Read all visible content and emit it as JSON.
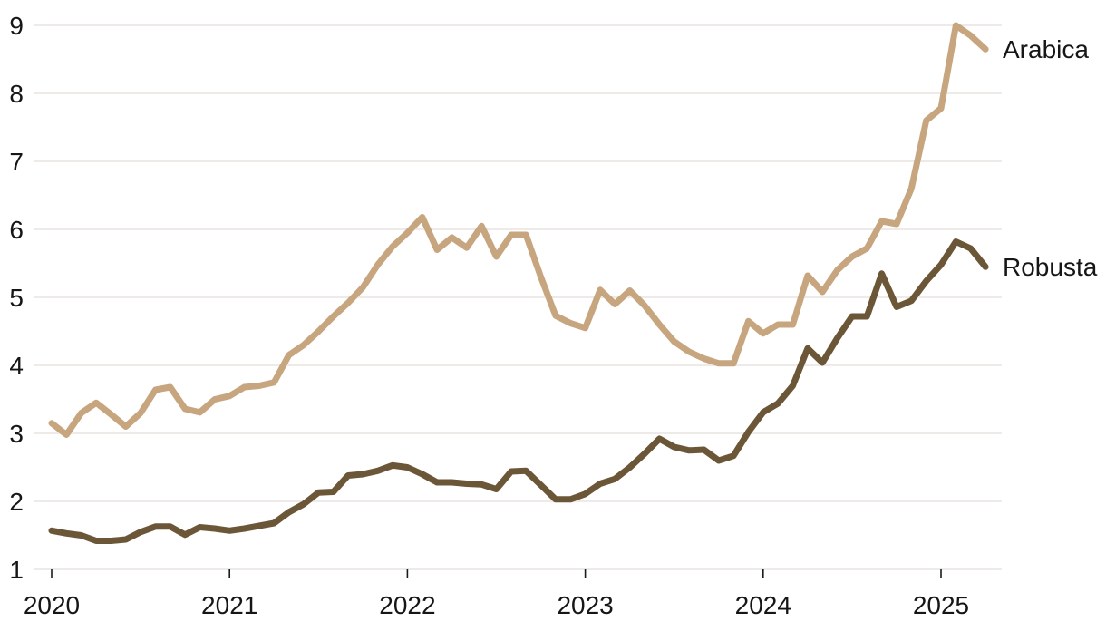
{
  "chart_data": {
    "type": "line",
    "title": "",
    "xlabel": "",
    "ylabel": "",
    "x_unit": "month",
    "x_start_label": "2020-01",
    "x_end_label": "2025-04",
    "x_tick_labels": [
      "2020",
      "2021",
      "2022",
      "2023",
      "2024",
      "2025"
    ],
    "x_tick_month_index": [
      0,
      12,
      24,
      36,
      48,
      60
    ],
    "y_ticks": [
      1,
      2,
      3,
      4,
      5,
      6,
      7,
      8,
      9
    ],
    "ylim": [
      1,
      9.1
    ],
    "grid": "horizontal",
    "legend_position": "right-end-of-line",
    "series": [
      {
        "name": "Arabica",
        "color": "#C7A67F",
        "values": [
          3.15,
          2.98,
          3.3,
          3.45,
          3.28,
          3.1,
          3.3,
          3.64,
          3.68,
          3.36,
          3.31,
          3.5,
          3.55,
          3.68,
          3.7,
          3.75,
          4.15,
          4.3,
          4.5,
          4.72,
          4.92,
          5.15,
          5.48,
          5.75,
          5.95,
          6.18,
          5.7,
          5.88,
          5.73,
          6.05,
          5.6,
          5.92,
          5.92,
          5.3,
          4.73,
          4.62,
          4.55,
          5.11,
          4.9,
          5.1,
          4.88,
          4.6,
          4.35,
          4.2,
          4.1,
          4.03,
          4.03,
          4.65,
          4.47,
          4.6,
          4.6,
          5.32,
          5.08,
          5.4,
          5.6,
          5.72,
          6.12,
          6.08,
          6.6,
          7.6,
          7.78,
          9.0,
          8.85,
          8.65
        ]
      },
      {
        "name": "Robusta",
        "color": "#6B5637",
        "values": [
          1.57,
          1.53,
          1.5,
          1.42,
          1.42,
          1.44,
          1.55,
          1.63,
          1.63,
          1.51,
          1.62,
          1.6,
          1.57,
          1.6,
          1.64,
          1.68,
          1.84,
          1.96,
          2.13,
          2.14,
          2.38,
          2.4,
          2.45,
          2.53,
          2.5,
          2.4,
          2.28,
          2.28,
          2.26,
          2.25,
          2.18,
          2.44,
          2.45,
          2.24,
          2.03,
          2.03,
          2.11,
          2.26,
          2.33,
          2.5,
          2.7,
          2.92,
          2.8,
          2.75,
          2.76,
          2.6,
          2.67,
          3.02,
          3.31,
          3.44,
          3.7,
          4.25,
          4.04,
          4.4,
          4.72,
          4.72,
          5.35,
          4.86,
          4.95,
          5.24,
          5.48,
          5.82,
          5.72,
          5.45
        ]
      }
    ]
  },
  "colors": {
    "background": "#ffffff",
    "grid": "#E7E4E1",
    "tick": "#1b1b1b",
    "axis_text": "#161616",
    "series_label_text": "#161616"
  }
}
